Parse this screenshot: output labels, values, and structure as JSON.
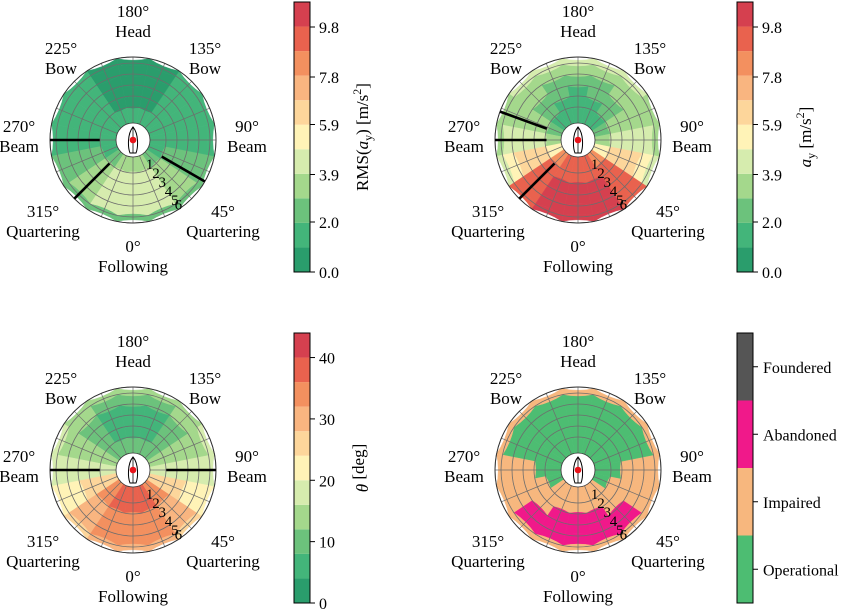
{
  "chart_data": [
    {
      "type": "polar_heatmap",
      "direction_labels": [
        {
          "angle": 180,
          "deg": "180°",
          "name": "Head"
        },
        {
          "angle": 135,
          "deg": "135°",
          "name": "Bow"
        },
        {
          "angle": 90,
          "deg": "90°",
          "name": "Beam"
        },
        {
          "angle": 45,
          "deg": "45°",
          "name": "Quartering"
        },
        {
          "angle": 0,
          "deg": "0°",
          "name": "Following"
        },
        {
          "angle": 315,
          "deg": "315°",
          "name": "Quartering"
        },
        {
          "angle": 270,
          "deg": "270°",
          "name": "Beam"
        },
        {
          "angle": 225,
          "deg": "225°",
          "name": "Bow"
        }
      ],
      "radial_ticks": [
        "1",
        "2",
        "3",
        "4",
        "5",
        "6"
      ],
      "colorbar": {
        "label": "RMS(a_y) [m/s²]",
        "label_parts": [
          "RMS(",
          "a",
          "y",
          ") [m/s",
          "2",
          "]"
        ],
        "ticks": [
          "0.0",
          "2.0",
          "3.9",
          "5.9",
          "7.8",
          "9.8"
        ],
        "range": [
          0,
          10.8
        ]
      },
      "sector_values_by_ring": {
        "ring1": [
          1.2,
          1.2,
          1.2,
          1.4,
          1.6,
          1.9,
          2.6,
          3.3,
          3.5,
          3.3,
          2.6,
          1.9,
          1.6,
          1.4,
          1.2,
          1.2
        ],
        "ring2": [
          0.9,
          0.9,
          1.0,
          1.2,
          1.5,
          2.3,
          3.1,
          4.2,
          4.6,
          4.2,
          3.1,
          2.3,
          1.5,
          1.2,
          1.0,
          0.9
        ],
        "ring3": [
          0.9,
          0.9,
          1.0,
          1.2,
          1.5,
          2.3,
          3.6,
          4.6,
          4.6,
          4.6,
          3.6,
          2.3,
          1.5,
          1.2,
          1.0,
          0.9
        ],
        "ring4": [
          0.9,
          0.9,
          1.0,
          1.2,
          1.4,
          2.3,
          3.6,
          4.6,
          4.6,
          4.6,
          3.6,
          2.3,
          1.4,
          1.2,
          1.0,
          0.9
        ],
        "ring5": [
          0.9,
          0.9,
          1.0,
          1.2,
          1.4,
          2.3,
          3.5,
          4.4,
          4.4,
          4.4,
          3.5,
          2.3,
          1.4,
          1.2,
          1.0,
          0.9
        ],
        "ring6": [
          0.9,
          0.9,
          1.0,
          1.2,
          1.4,
          2.3,
          2.3,
          2.3,
          2.3,
          2.3,
          2.3,
          2.3,
          1.4,
          1.2,
          1.0,
          0.9
        ]
      }
    },
    {
      "type": "polar_heatmap",
      "direction_labels": [
        {
          "angle": 180,
          "deg": "180°",
          "name": "Head"
        },
        {
          "angle": 135,
          "deg": "135°",
          "name": "Bow"
        },
        {
          "angle": 90,
          "deg": "90°",
          "name": "Beam"
        },
        {
          "angle": 45,
          "deg": "45°",
          "name": "Quartering"
        },
        {
          "angle": 0,
          "deg": "0°",
          "name": "Following"
        },
        {
          "angle": 315,
          "deg": "315°",
          "name": "Quartering"
        },
        {
          "angle": 270,
          "deg": "270°",
          "name": "Beam"
        },
        {
          "angle": 225,
          "deg": "225°",
          "name": "Bow"
        }
      ],
      "radial_ticks": [
        "1",
        "2",
        "3",
        "4",
        "5",
        "6"
      ],
      "colorbar": {
        "label": "a_y [m/s²]",
        "label_parts": [
          "",
          "a",
          "y",
          " [m/s",
          "2",
          "]"
        ],
        "ticks": [
          "0.0",
          "2.0",
          "3.9",
          "5.9",
          "7.8",
          "9.8"
        ],
        "range": [
          0,
          10.8
        ]
      },
      "sector_values_by_ring": {
        "ring1": [
          1.5,
          1.5,
          1.5,
          2.5,
          3.5,
          5.5,
          8.0,
          9.0,
          9.0,
          9.0,
          8.0,
          5.5,
          3.5,
          2.5,
          1.5,
          1.5
        ],
        "ring2": [
          1.5,
          1.5,
          2.5,
          3.5,
          4.5,
          6.5,
          9.0,
          9.5,
          9.5,
          9.5,
          9.0,
          6.5,
          4.5,
          3.5,
          2.5,
          1.5
        ],
        "ring3": [
          1.5,
          2.5,
          2.5,
          3.5,
          4.5,
          6.5,
          9.5,
          10.0,
          10.0,
          10.0,
          9.5,
          6.5,
          4.5,
          3.5,
          2.5,
          2.5
        ],
        "ring4": [
          2.5,
          2.5,
          3.2,
          3.8,
          4.5,
          6.5,
          9.5,
          10.0,
          10.0,
          10.0,
          9.5,
          6.5,
          4.5,
          3.8,
          3.2,
          2.5
        ],
        "ring5": [
          3.2,
          3.2,
          3.2,
          3.8,
          4.8,
          5.4,
          9.5,
          10.0,
          10.0,
          10.0,
          9.5,
          5.4,
          4.8,
          3.8,
          3.2,
          3.2
        ],
        "ring6": [
          4.8,
          4.8,
          4.8,
          3.2,
          3.2,
          4.8,
          9.5,
          10.0,
          10.0,
          10.0,
          9.5,
          4.8,
          3.2,
          3.2,
          4.8,
          4.8
        ]
      }
    },
    {
      "type": "polar_heatmap",
      "direction_labels": [
        {
          "angle": 180,
          "deg": "180°",
          "name": "Head"
        },
        {
          "angle": 135,
          "deg": "135°",
          "name": "Bow"
        },
        {
          "angle": 90,
          "deg": "90°",
          "name": "Beam"
        },
        {
          "angle": 45,
          "deg": "45°",
          "name": "Quartering"
        },
        {
          "angle": 0,
          "deg": "0°",
          "name": "Following"
        },
        {
          "angle": 315,
          "deg": "315°",
          "name": "Quartering"
        },
        {
          "angle": 270,
          "deg": "270°",
          "name": "Beam"
        },
        {
          "angle": 225,
          "deg": "225°",
          "name": "Bow"
        }
      ],
      "radial_ticks": [
        "1",
        "2",
        "3",
        "4",
        "5",
        "6"
      ],
      "colorbar": {
        "label": "θ [deg]",
        "label_parts": [
          "",
          "θ",
          "",
          " [deg]",
          "",
          ""
        ],
        "ticks": [
          "0",
          "10",
          "20",
          "30",
          "40"
        ],
        "range": [
          0,
          44
        ]
      },
      "sector_values_by_ring": {
        "ring1": [
          8,
          8,
          8,
          12,
          16,
          24,
          32,
          36,
          36,
          36,
          32,
          24,
          16,
          12,
          8,
          8
        ],
        "ring2": [
          6,
          6,
          8,
          12,
          16,
          26,
          32,
          36,
          36,
          36,
          32,
          26,
          16,
          12,
          8,
          6
        ],
        "ring3": [
          6,
          6,
          8,
          12,
          16,
          24,
          30,
          34,
          34,
          34,
          30,
          24,
          16,
          12,
          8,
          6
        ],
        "ring4": [
          6,
          6,
          8,
          12,
          16,
          22,
          30,
          34,
          34,
          34,
          30,
          22,
          16,
          12,
          8,
          6
        ],
        "ring5": [
          8,
          8,
          12,
          14,
          16,
          22,
          28,
          32,
          32,
          32,
          28,
          22,
          16,
          14,
          12,
          8
        ],
        "ring6": [
          12,
          12,
          14,
          16,
          16,
          22,
          26,
          30,
          30,
          30,
          26,
          22,
          16,
          16,
          14,
          12
        ]
      }
    },
    {
      "type": "polar_heatmap",
      "direction_labels": [
        {
          "angle": 180,
          "deg": "180°",
          "name": "Head"
        },
        {
          "angle": 135,
          "deg": "135°",
          "name": "Bow"
        },
        {
          "angle": 90,
          "deg": "90°",
          "name": "Beam"
        },
        {
          "angle": 45,
          "deg": "45°",
          "name": "Quartering"
        },
        {
          "angle": 0,
          "deg": "0°",
          "name": "Following"
        },
        {
          "angle": 315,
          "deg": "315°",
          "name": "Quartering"
        },
        {
          "angle": 270,
          "deg": "270°",
          "name": "Beam"
        },
        {
          "angle": 225,
          "deg": "225°",
          "name": "Bow"
        }
      ],
      "radial_ticks": [
        "1",
        "2",
        "3",
        "4",
        "5",
        "6"
      ],
      "colorbar": {
        "categories": [
          "Operational",
          "Impaired",
          "Abandoned",
          "Foundered"
        ],
        "colors": [
          "#4dbd72",
          "#f7b77e",
          "#f0198a",
          "#555555"
        ]
      },
      "sector_states_by_ring": {
        "ring1": [
          0,
          0,
          0,
          0,
          0,
          0,
          1,
          1,
          1,
          1,
          1,
          0,
          0,
          0,
          0,
          0
        ],
        "ring2": [
          0,
          0,
          0,
          0,
          0,
          1,
          1,
          1,
          1,
          1,
          1,
          1,
          0,
          0,
          0,
          0
        ],
        "ring3": [
          0,
          0,
          0,
          0,
          1,
          1,
          1,
          2,
          2,
          2,
          1,
          1,
          1,
          0,
          0,
          0
        ],
        "ring4": [
          0,
          0,
          0,
          0,
          1,
          1,
          2,
          2,
          2,
          2,
          2,
          1,
          1,
          0,
          0,
          0
        ],
        "ring5": [
          0,
          0,
          0,
          0,
          1,
          1,
          2,
          2,
          2,
          2,
          2,
          1,
          1,
          0,
          0,
          0
        ],
        "ring6": [
          1,
          1,
          1,
          1,
          1,
          1,
          1,
          1,
          1,
          1,
          1,
          1,
          1,
          1,
          1,
          1
        ]
      }
    }
  ]
}
